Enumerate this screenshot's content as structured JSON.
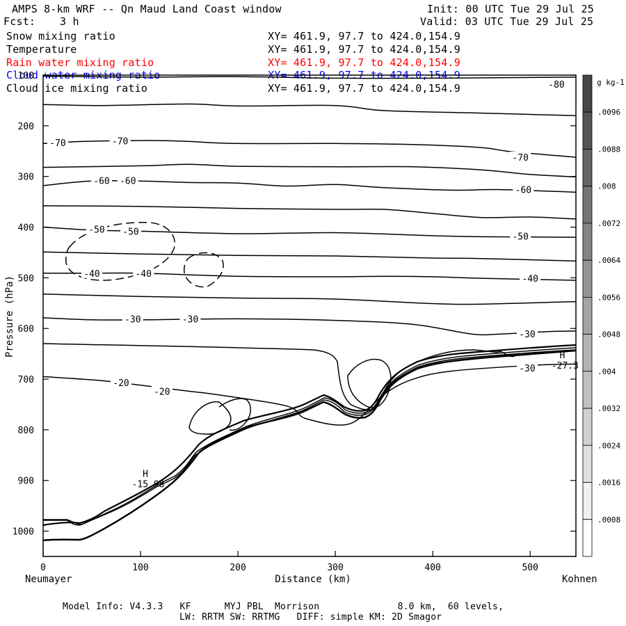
{
  "header": {
    "title": "AMPS 8-km WRF -- Qn Maud Land Coast window",
    "fcst_label": "Fcst:",
    "fcst_value": "3 h",
    "init": "Init: 00 UTC Tue 29 Jul 25",
    "valid": "Valid: 03 UTC Tue 29 Jul 25"
  },
  "fields": [
    {
      "name": "Snow mixing ratio",
      "xy": "XY= 461.9, 97.7 to 424.0,154.9",
      "color": "#000000"
    },
    {
      "name": "Temperature",
      "xy": "XY= 461.9, 97.7 to 424.0,154.9",
      "color": "#000000"
    },
    {
      "name": "Rain water mixing ratio",
      "xy": "XY= 461.9, 97.7 to 424.0,154.9",
      "color": "#ff0000"
    },
    {
      "name": "Cloud water mixing ratio",
      "xy": "XY= 461.9, 97.7 to 424.0,154.9",
      "color": "#0000ff"
    },
    {
      "name": "Cloud ice mixing ratio",
      "xy": "XY= 461.9, 97.7 to 424.0,154.9",
      "color": "#000000"
    }
  ],
  "footer": {
    "line1": "Model Info: V4.3.3   KF      MYJ PBL  Morrison              8.0 km,  60 levels,",
    "line2": "LW: RRTM SW: RRTMG   DIFF: simple KM: 2D Smagor"
  },
  "chart_data": {
    "type": "contour",
    "xlabel": "Distance (km)",
    "ylabel": "Pressure (hPa)",
    "x_left_label": "Neumayer",
    "x_right_label": "Kohnen",
    "xlim": [
      0,
      547
    ],
    "ylim": [
      1050,
      100
    ],
    "x_ticks": [
      0,
      100,
      200,
      300,
      400,
      500
    ],
    "y_ticks": [
      100,
      200,
      300,
      400,
      500,
      600,
      700,
      800,
      900,
      1000
    ],
    "colorbar": {
      "unit_label": "g kg-1",
      "tick_labels": [
        ".0096",
        ".0088",
        ".008",
        ".0072",
        ".0064",
        ".0056",
        ".0048",
        ".004",
        ".0032",
        ".0024",
        ".0016",
        ".0008"
      ]
    },
    "contour_labels": [
      {
        "text": "-80",
        "x": 527,
        "p": 118
      },
      {
        "text": "-70",
        "x": 15,
        "p": 233
      },
      {
        "text": "-70",
        "x": 79,
        "p": 230
      },
      {
        "text": "-70",
        "x": 490,
        "p": 262
      },
      {
        "text": "-60",
        "x": 60,
        "p": 308
      },
      {
        "text": "-60",
        "x": 87,
        "p": 308
      },
      {
        "text": "-60",
        "x": 493,
        "p": 326
      },
      {
        "text": "-50",
        "x": 55,
        "p": 404
      },
      {
        "text": "-50",
        "x": 90,
        "p": 408
      },
      {
        "text": "-50",
        "x": 490,
        "p": 418
      },
      {
        "text": "-40",
        "x": 50,
        "p": 491
      },
      {
        "text": "-40",
        "x": 103,
        "p": 491
      },
      {
        "text": "-40",
        "x": 500,
        "p": 501
      },
      {
        "text": "-30",
        "x": 92,
        "p": 581
      },
      {
        "text": "-30",
        "x": 151,
        "p": 581
      },
      {
        "text": "-30",
        "x": 497,
        "p": 611
      },
      {
        "text": "-30",
        "x": 497,
        "p": 678
      },
      {
        "text": "-20",
        "x": 80,
        "p": 707
      },
      {
        "text": "-20",
        "x": 122,
        "p": 724
      }
    ],
    "extrema": [
      {
        "label": "H",
        "value": "-15.98",
        "x": 105,
        "p": 893
      },
      {
        "label": "H",
        "value": "-27.3",
        "x": 533,
        "p": 659
      }
    ],
    "temperature_contours": [
      {
        "level": -80,
        "points": [
          [
            0,
            102
          ],
          [
            100,
            104
          ],
          [
            200,
            103
          ],
          [
            300,
            106
          ],
          [
            400,
            106
          ],
          [
            547,
            104
          ]
        ]
      },
      {
        "level": -70,
        "points": [
          [
            0,
            158
          ],
          [
            60,
            160
          ],
          [
            150,
            157
          ],
          [
            200,
            161
          ],
          [
            300,
            160
          ],
          [
            350,
            170
          ],
          [
            450,
            175
          ],
          [
            547,
            180
          ]
        ]
      },
      {
        "level": -70,
        "points": [
          [
            0,
            235
          ],
          [
            40,
            231
          ],
          [
            110,
            229
          ],
          [
            150,
            231
          ],
          [
            200,
            235
          ],
          [
            300,
            235
          ],
          [
            380,
            237
          ],
          [
            450,
            243
          ],
          [
            480,
            251
          ],
          [
            547,
            262
          ]
        ]
      },
      {
        "level": -70,
        "points": [
          [
            0,
            282
          ],
          [
            100,
            279
          ],
          [
            150,
            276
          ],
          [
            200,
            280
          ],
          [
            300,
            281
          ],
          [
            380,
            281
          ],
          [
            450,
            287
          ],
          [
            500,
            296
          ],
          [
            547,
            301
          ]
        ]
      },
      {
        "level": -60,
        "points": [
          [
            0,
            318
          ],
          [
            50,
            309
          ],
          [
            100,
            309
          ],
          [
            150,
            312
          ],
          [
            200,
            313
          ],
          [
            250,
            319
          ],
          [
            300,
            316
          ],
          [
            350,
            322
          ],
          [
            420,
            327
          ],
          [
            470,
            326
          ],
          [
            547,
            331
          ]
        ]
      },
      {
        "level": -60,
        "points": [
          [
            0,
            358
          ],
          [
            100,
            359
          ],
          [
            200,
            363
          ],
          [
            300,
            365
          ],
          [
            350,
            365
          ],
          [
            400,
            373
          ],
          [
            450,
            381
          ],
          [
            500,
            380
          ],
          [
            547,
            384
          ]
        ]
      },
      {
        "level": -50,
        "points": [
          [
            0,
            400
          ],
          [
            50,
            406
          ],
          [
            100,
            408
          ],
          [
            200,
            413
          ],
          [
            300,
            411
          ],
          [
            400,
            417
          ],
          [
            450,
            419
          ],
          [
            547,
            420
          ]
        ]
      },
      {
        "level": -50,
        "points": [
          [
            0,
            449
          ],
          [
            100,
            453
          ],
          [
            200,
            456
          ],
          [
            300,
            457
          ],
          [
            400,
            461
          ],
          [
            450,
            462
          ],
          [
            547,
            467
          ]
        ]
      },
      {
        "level": -40,
        "points": [
          [
            0,
            491
          ],
          [
            50,
            491
          ],
          [
            100,
            491
          ],
          [
            200,
            497
          ],
          [
            300,
            498
          ],
          [
            350,
            497
          ],
          [
            400,
            498
          ],
          [
            450,
            501
          ],
          [
            547,
            505
          ]
        ]
      },
      {
        "level": -40,
        "points": [
          [
            0,
            532
          ],
          [
            100,
            537
          ],
          [
            200,
            540
          ],
          [
            300,
            542
          ],
          [
            400,
            551
          ],
          [
            450,
            552
          ],
          [
            547,
            547
          ]
        ]
      },
      {
        "level": -30,
        "points": [
          [
            0,
            579
          ],
          [
            50,
            583
          ],
          [
            100,
            583
          ],
          [
            200,
            581
          ],
          [
            300,
            584
          ],
          [
            380,
            592
          ],
          [
            440,
            611
          ],
          [
            470,
            611
          ],
          [
            520,
            606
          ],
          [
            547,
            605
          ]
        ]
      },
      {
        "level": -20,
        "points": [
          [
            0,
            695
          ],
          [
            60,
            703
          ],
          [
            100,
            712
          ],
          [
            150,
            724
          ],
          [
            180,
            731
          ],
          [
            250,
            753
          ],
          [
            270,
            778
          ],
          [
            315,
            788
          ],
          [
            350,
            730
          ],
          [
            380,
            700
          ],
          [
            420,
            684
          ],
          [
            500,
            673
          ],
          [
            547,
            670
          ]
        ]
      }
    ]
  }
}
